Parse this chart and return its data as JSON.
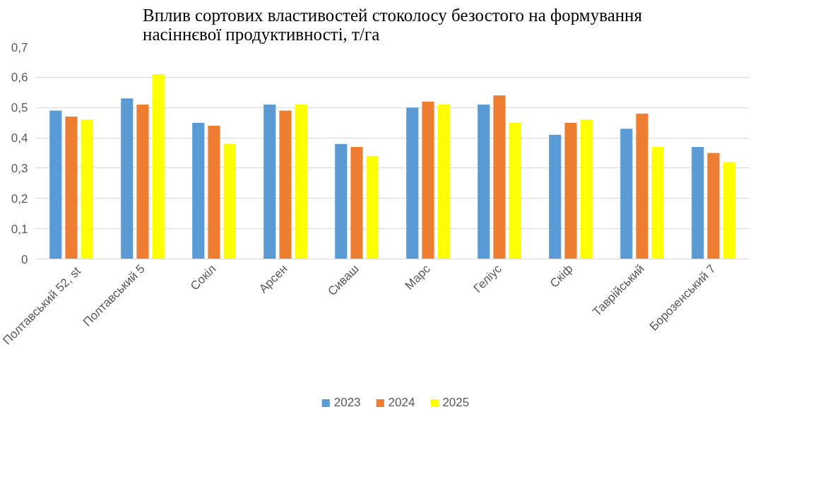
{
  "chart_data": {
    "type": "bar",
    "title": "Вплив сортових властивостей стоколосу безостого на формування насіннєвої продуктивності, т/га",
    "categories": [
      "Полтавський 52,  st",
      "Полтавський 5",
      "Сокіл",
      "Арсен",
      "Сиваш",
      "Марс",
      "Геліус",
      "Скіф",
      "Таврійський",
      "Борозенський 7"
    ],
    "series": [
      {
        "name": "2023",
        "color": "#5b9bd5",
        "values": [
          0.49,
          0.53,
          0.45,
          0.51,
          0.38,
          0.5,
          0.51,
          0.41,
          0.43,
          0.37
        ]
      },
      {
        "name": "2024",
        "color": "#ed7d31",
        "values": [
          0.47,
          0.51,
          0.44,
          0.49,
          0.37,
          0.52,
          0.54,
          0.45,
          0.48,
          0.35
        ]
      },
      {
        "name": "2025",
        "color": "#ffff00",
        "values": [
          0.46,
          0.61,
          0.38,
          0.51,
          0.34,
          0.51,
          0.45,
          0.46,
          0.37,
          0.32
        ]
      }
    ],
    "ylim": [
      0,
      0.7
    ],
    "yticks": [
      {
        "value": 0,
        "label": "0"
      },
      {
        "value": 0.1,
        "label": "0,1"
      },
      {
        "value": 0.2,
        "label": "0,2"
      },
      {
        "value": 0.3,
        "label": "0,3"
      },
      {
        "value": 0.4,
        "label": "0,4"
      },
      {
        "value": 0.5,
        "label": "0,5"
      },
      {
        "value": 0.6,
        "label": "0,6"
      },
      {
        "value": 0.7,
        "label": "0,7"
      }
    ],
    "grid": "y",
    "legend": "bottom"
  }
}
